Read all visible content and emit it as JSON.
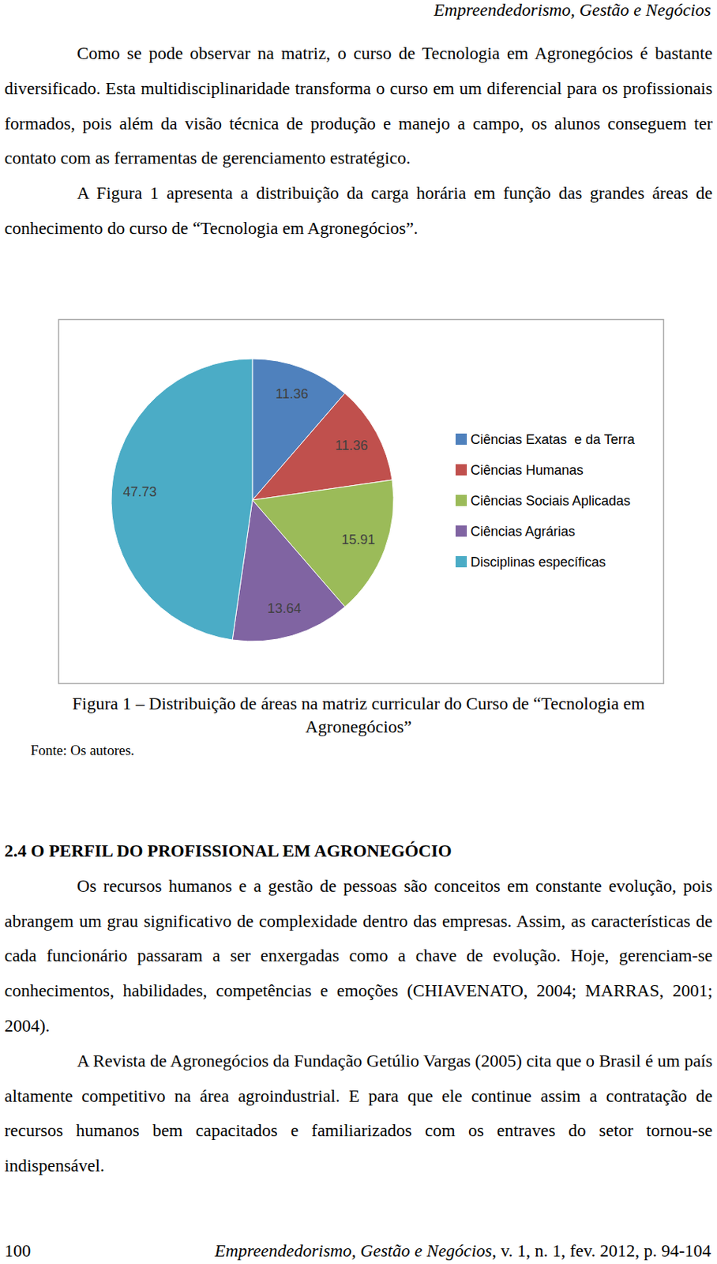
{
  "header": {
    "running_title": "Empreendedorismo, Gestão e Negócios"
  },
  "section_1": {
    "paragraphs": [
      "Como se pode observar na matriz, o curso de Tecnologia em Agronegócios é bastante diversificado. Esta multidisciplinaridade transforma o curso em um diferencial para os profissionais formados, pois além da visão técnica de produção e manejo a campo, os alunos conseguem ter contato com as ferramentas de gerenciamento estratégico.",
      "A Figura 1 apresenta a distribuição da carga horária em função das grandes áreas de conhecimento do curso de “Tecnologia em Agronegócios”."
    ]
  },
  "chart_data": {
    "type": "pie",
    "categories": [
      "Ciências Exatas  e da Terra",
      "Ciências Humanas",
      "Ciências Sociais Aplicadas",
      "Ciências Agrárias",
      "Disciplinas específicas"
    ],
    "values": [
      11.36,
      11.36,
      15.91,
      13.64,
      47.73
    ],
    "colors": [
      "#4f81bd",
      "#c0504d",
      "#9bbb59",
      "#8064a2",
      "#4bacc6"
    ],
    "data_labels": true,
    "legend": "right"
  },
  "figure": {
    "caption": "Figura 1 – Distribuição de áreas na matriz curricular do Curso de “Tecnologia em Agronegócios”",
    "source": "Fonte: Os autores."
  },
  "section_2": {
    "heading": "2.4 O PERFIL DO PROFISSIONAL EM AGRONEGÓCIO",
    "paragraphs": [
      "Os recursos humanos e a gestão de pessoas são conceitos em constante evolução, pois abrangem um grau significativo de complexidade dentro das empresas. Assim, as características de cada funcionário passaram a ser enxergadas como a chave de evolução. Hoje, gerenciam-se conhecimentos, habilidades, competências e emoções (CHIAVENATO, 2004; MARRAS, 2001; 2004).",
      "A Revista de Agronegócios da Fundação Getúlio Vargas (2005) cita que o Brasil é um país altamente competitivo na área agroindustrial. E para que ele continue assim a contratação de recursos humanos bem capacitados e familiarizados com os entraves do setor tornou-se indispensável."
    ]
  },
  "footer": {
    "page": "100",
    "journal": "Empreendedorismo, Gestão e Negócios",
    "issue": ", v. 1, n. 1, fev. 2012, p. 94-104"
  }
}
